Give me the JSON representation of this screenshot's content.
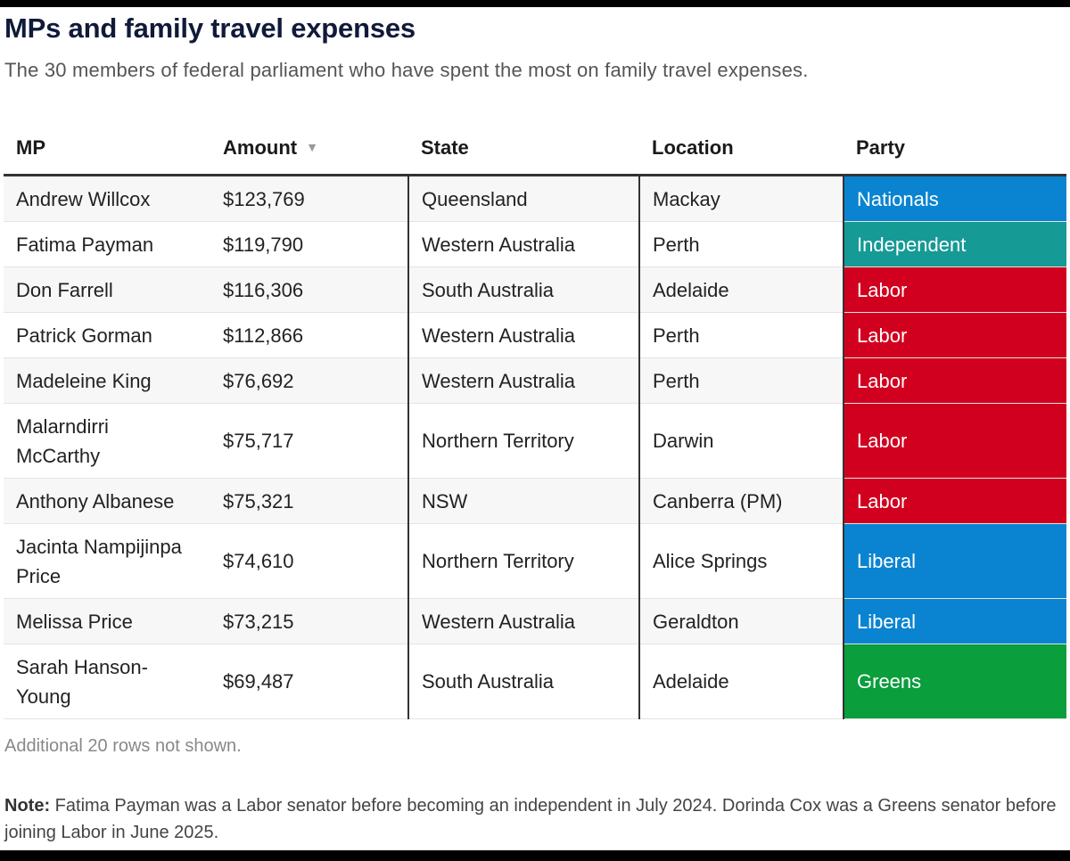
{
  "title": "MPs and family travel expenses",
  "subtitle": "The 30 members of federal parliament who have spent the most on family travel expenses.",
  "table": {
    "headers": {
      "mp": "MP",
      "amount": "Amount",
      "sort_icon": "▼",
      "state": "State",
      "location": "Location",
      "party": "Party"
    },
    "rows": [
      {
        "mp": "Andrew Willcox",
        "amount": "$123,769",
        "state": "Queensland",
        "location": "Mackay",
        "party": "Nationals",
        "party_color": "#0a84d0"
      },
      {
        "mp": "Fatima Payman",
        "amount": "$119,790",
        "state": "Western Australia",
        "location": "Perth",
        "party": "Independent",
        "party_color": "#169a96"
      },
      {
        "mp": "Don Farrell",
        "amount": "$116,306",
        "state": "South Australia",
        "location": "Adelaide",
        "party": "Labor",
        "party_color": "#d1001f"
      },
      {
        "mp": "Patrick Gorman",
        "amount": "$112,866",
        "state": "Western Australia",
        "location": "Perth",
        "party": "Labor",
        "party_color": "#d1001f"
      },
      {
        "mp": "Madeleine King",
        "amount": "$76,692",
        "state": "Western Australia",
        "location": "Perth",
        "party": "Labor",
        "party_color": "#d1001f"
      },
      {
        "mp": "Malarndirri McCarthy",
        "amount": "$75,717",
        "state": "Northern Territory",
        "location": "Darwin",
        "party": "Labor",
        "party_color": "#d1001f"
      },
      {
        "mp": "Anthony Albanese",
        "amount": "$75,321",
        "state": "NSW",
        "location": "Canberra (PM)",
        "party": "Labor",
        "party_color": "#d1001f"
      },
      {
        "mp": "Jacinta Nampijinpa Price",
        "amount": "$74,610",
        "state": "Northern Territory",
        "location": "Alice Springs",
        "party": "Liberal",
        "party_color": "#0a84d0"
      },
      {
        "mp": "Melissa Price",
        "amount": "$73,215",
        "state": "Western Australia",
        "location": "Geraldton",
        "party": "Liberal",
        "party_color": "#0a84d0"
      },
      {
        "mp": "Sarah Hanson-Young",
        "amount": "$69,487",
        "state": "South Australia",
        "location": "Adelaide",
        "party": "Greens",
        "party_color": "#0a9e3c"
      }
    ]
  },
  "footnote": "Additional 20 rows not shown.",
  "note": {
    "label": "Note:",
    "text": " Fatima Payman was a Labor senator before becoming an independent in July 2024. Dorinda Cox was a Greens senator before joining Labor in June 2025."
  }
}
